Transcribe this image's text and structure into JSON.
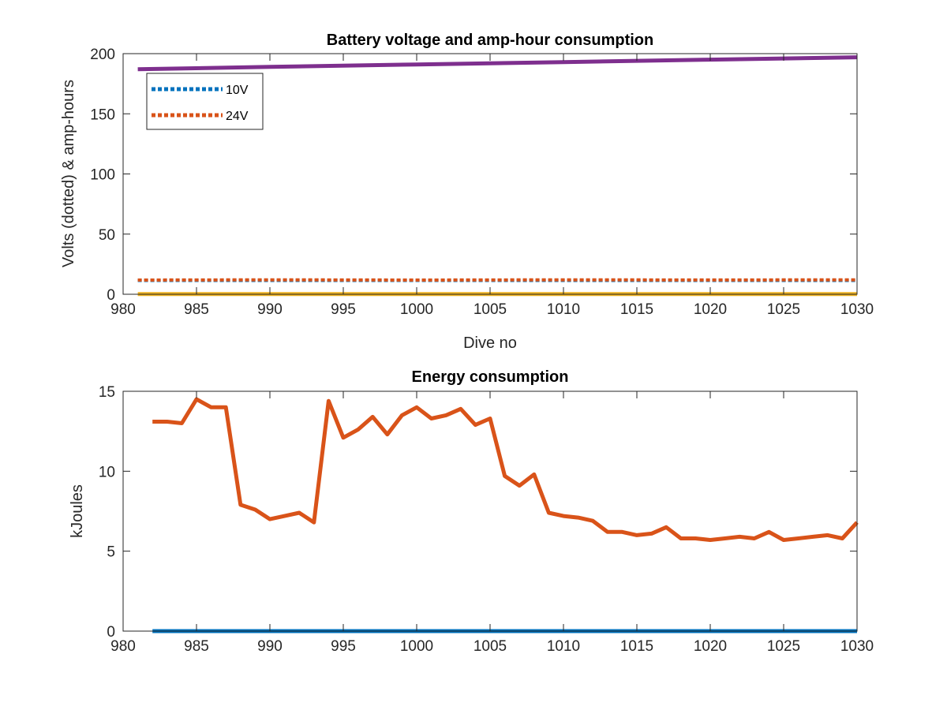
{
  "chart_data": [
    {
      "type": "line",
      "title": "Battery voltage and amp-hour consumption",
      "xlabel": "Dive no",
      "ylabel": "Volts (dotted) & amp-hours",
      "xlim": [
        980,
        1030
      ],
      "ylim": [
        0,
        200
      ],
      "xticks": [
        "980",
        "985",
        "990",
        "995",
        "1000",
        "1005",
        "1010",
        "1015",
        "1020",
        "1025",
        "1030"
      ],
      "yticks": [
        "0",
        "50",
        "100",
        "150",
        "200"
      ],
      "grid": false,
      "legend_position": "top-left",
      "legend": [
        "10V",
        "24V"
      ],
      "series": [
        {
          "name": "10V",
          "style": "dotted",
          "color": "#0072BD",
          "x": [
            981,
            990,
            1000,
            1010,
            1020,
            1030
          ],
          "y": [
            11.5,
            11.5,
            11.5,
            11.5,
            11.5,
            11.5
          ]
        },
        {
          "name": "24V",
          "style": "dotted",
          "color": "#D95319",
          "x": [
            981,
            990,
            1000,
            1010,
            1020,
            1030
          ],
          "y": [
            11.8,
            12.0,
            11.8,
            12.0,
            11.9,
            12.0
          ]
        },
        {
          "style": "solid",
          "color": "#EDB120",
          "x": [
            981,
            1030
          ],
          "y": [
            0.2,
            0.2
          ]
        },
        {
          "style": "solid",
          "color": "#7E2F8E",
          "x": [
            981,
            990,
            1000,
            1010,
            1020,
            1030
          ],
          "y": [
            187,
            189,
            191,
            193,
            195,
            197
          ]
        }
      ]
    },
    {
      "type": "line",
      "title": "Energy consumption",
      "xlabel": "",
      "ylabel": "kJoules",
      "xlim": [
        980,
        1030
      ],
      "ylim": [
        0,
        15
      ],
      "xticks": [
        "980",
        "985",
        "990",
        "995",
        "1000",
        "1005",
        "1010",
        "1015",
        "1020",
        "1025",
        "1030"
      ],
      "yticks": [
        "0",
        "5",
        "10",
        "15"
      ],
      "grid": false,
      "series": [
        {
          "style": "solid",
          "color": "#D95319",
          "x": [
            982,
            983,
            984,
            985,
            986,
            987,
            988,
            989,
            990,
            991,
            992,
            993,
            994,
            995,
            996,
            997,
            998,
            999,
            1000,
            1001,
            1002,
            1003,
            1004,
            1005,
            1006,
            1007,
            1008,
            1009,
            1010,
            1011,
            1012,
            1013,
            1014,
            1015,
            1016,
            1017,
            1018,
            1019,
            1020,
            1021,
            1022,
            1023,
            1024,
            1025,
            1026,
            1027,
            1028,
            1029,
            1030
          ],
          "y": [
            13.1,
            13.1,
            13.0,
            14.5,
            14.0,
            14.0,
            7.9,
            7.6,
            7.0,
            7.2,
            7.4,
            6.8,
            14.4,
            12.1,
            12.6,
            13.4,
            12.3,
            13.5,
            14.0,
            13.3,
            13.5,
            13.9,
            12.9,
            13.3,
            9.7,
            9.1,
            9.8,
            7.4,
            7.2,
            7.1,
            6.9,
            6.2,
            6.2,
            6.0,
            6.1,
            6.5,
            5.8,
            5.8,
            5.7,
            5.8,
            5.9,
            5.8,
            6.2,
            5.7,
            5.8,
            5.9,
            6.0,
            5.8,
            6.8
          ]
        },
        {
          "style": "solid",
          "color": "#0072BD",
          "x": [
            982,
            1030
          ],
          "y": [
            0,
            0
          ]
        }
      ]
    }
  ]
}
